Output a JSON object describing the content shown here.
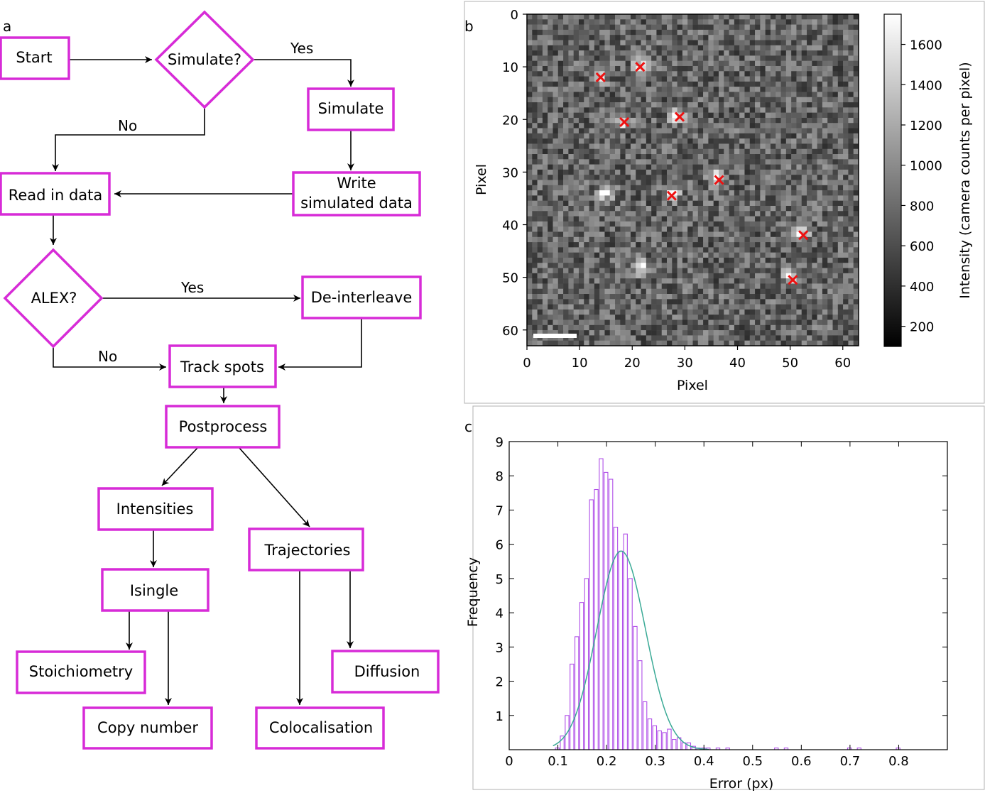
{
  "panels": {
    "a": "a",
    "b": "b",
    "c": "c"
  },
  "flowchart": {
    "nodes": {
      "start": "Start",
      "simulate_q": "Simulate?",
      "simulate": "Simulate",
      "write_line1": "Write",
      "write_line2": "simulated data",
      "read": "Read in data",
      "alex_q": "ALEX?",
      "deinterleave": "De-interleave",
      "track": "Track spots",
      "postprocess": "Postprocess",
      "intensities": "Intensities",
      "trajectories": "Trajectories",
      "isingle": "Isingle",
      "stoichiometry": "Stoichiometry",
      "copy_number": "Copy number",
      "diffusion": "Diffusion",
      "colocalisation": "Colocalisation"
    },
    "edge_labels": {
      "sim_yes": "Yes",
      "sim_no": "No",
      "alex_yes": "Yes",
      "alex_no": "No"
    },
    "colors": {
      "box": "#d72bd7",
      "arrow": "#000000"
    }
  },
  "chart_data": [
    {
      "type": "heatmap",
      "xlabel": "Pixel",
      "ylabel": "Pixel",
      "xlim": [
        0,
        63
      ],
      "ylim": [
        0,
        63
      ],
      "x_ticks": [
        "0",
        "10",
        "20",
        "30",
        "40",
        "50",
        "60"
      ],
      "y_ticks": [
        "0",
        "10",
        "20",
        "30",
        "40",
        "50",
        "60"
      ],
      "colorbar": {
        "label": "Intensity (camera counts per pixel)",
        "range": [
          100,
          1750
        ],
        "ticks": [
          "200",
          "400",
          "600",
          "800",
          "1000",
          "1200",
          "1400",
          "1600"
        ]
      },
      "spots": [
        {
          "x": 14,
          "y": 12
        },
        {
          "x": 22,
          "y": 10
        },
        {
          "x": 18.5,
          "y": 20.5
        },
        {
          "x": 29,
          "y": 19.5
        },
        {
          "x": 15,
          "y": 34.5
        },
        {
          "x": 28,
          "y": 34.5
        },
        {
          "x": 36.5,
          "y": 31.5
        },
        {
          "x": 53,
          "y": 42
        },
        {
          "x": 22,
          "y": 49
        },
        {
          "x": 51,
          "y": 50.5
        }
      ],
      "detected": [
        {
          "x": 14,
          "y": 12
        },
        {
          "x": 21.5,
          "y": 10
        },
        {
          "x": 18.5,
          "y": 20.5
        },
        {
          "x": 29,
          "y": 19.5
        },
        {
          "x": 27.5,
          "y": 34.5
        },
        {
          "x": 36.5,
          "y": 31.5
        },
        {
          "x": 52.5,
          "y": 42
        },
        {
          "x": 50.5,
          "y": 50.5
        }
      ],
      "colors": {
        "marker": "#ee1111",
        "scalebar": "#ffffff"
      }
    },
    {
      "type": "bar",
      "xlabel": "Error (px)",
      "ylabel": "Frequency",
      "xlim": [
        0,
        0.9
      ],
      "ylim": [
        0,
        9
      ],
      "x_ticks": [
        "0",
        "0.1",
        "0.2",
        "0.3",
        "0.4",
        "0.5",
        "0.6",
        "0.7",
        "0.8"
      ],
      "y_ticks": [
        "1",
        "2",
        "3",
        "4",
        "5",
        "6",
        "7",
        "8",
        "9"
      ],
      "bin_width": 0.01,
      "bins": [
        {
          "x": 0.1,
          "y": 0.05
        },
        {
          "x": 0.11,
          "y": 0.4
        },
        {
          "x": 0.12,
          "y": 1.0
        },
        {
          "x": 0.13,
          "y": 2.5
        },
        {
          "x": 0.14,
          "y": 3.3
        },
        {
          "x": 0.15,
          "y": 4.3
        },
        {
          "x": 0.16,
          "y": 5.0
        },
        {
          "x": 0.17,
          "y": 7.3
        },
        {
          "x": 0.18,
          "y": 7.6
        },
        {
          "x": 0.19,
          "y": 8.5
        },
        {
          "x": 0.2,
          "y": 8.1
        },
        {
          "x": 0.21,
          "y": 7.9
        },
        {
          "x": 0.22,
          "y": 6.5
        },
        {
          "x": 0.23,
          "y": 5.8
        },
        {
          "x": 0.24,
          "y": 6.3
        },
        {
          "x": 0.25,
          "y": 5.0
        },
        {
          "x": 0.26,
          "y": 3.6
        },
        {
          "x": 0.27,
          "y": 2.6
        },
        {
          "x": 0.28,
          "y": 1.4
        },
        {
          "x": 0.29,
          "y": 0.9
        },
        {
          "x": 0.3,
          "y": 0.7
        },
        {
          "x": 0.31,
          "y": 0.55
        },
        {
          "x": 0.32,
          "y": 0.5
        },
        {
          "x": 0.33,
          "y": 0.6
        },
        {
          "x": 0.34,
          "y": 0.3
        },
        {
          "x": 0.35,
          "y": 0.35
        },
        {
          "x": 0.36,
          "y": 0.2
        },
        {
          "x": 0.37,
          "y": 0.2
        },
        {
          "x": 0.38,
          "y": 0.1
        },
        {
          "x": 0.39,
          "y": 0.05
        },
        {
          "x": 0.4,
          "y": 0.05
        },
        {
          "x": 0.41,
          "y": 0.05
        },
        {
          "x": 0.43,
          "y": 0.05
        },
        {
          "x": 0.45,
          "y": 0.05
        },
        {
          "x": 0.55,
          "y": 0.05
        },
        {
          "x": 0.57,
          "y": 0.05
        },
        {
          "x": 0.7,
          "y": 0.05
        },
        {
          "x": 0.72,
          "y": 0.05
        },
        {
          "x": 0.8,
          "y": 0.05
        }
      ],
      "fit": {
        "type": "gaussian",
        "amplitude": 5.8,
        "mean": 0.23,
        "sigma": 0.05,
        "x_range": [
          0.09,
          0.41
        ]
      },
      "colors": {
        "bars": "#b04fe8",
        "fit": "#3aaa96"
      }
    }
  ]
}
